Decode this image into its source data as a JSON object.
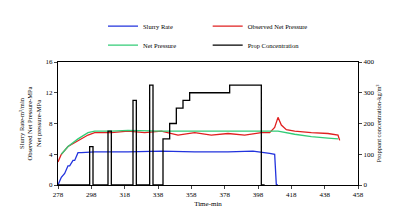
{
  "chart_data": {
    "type": "line",
    "xlabel": "Time-min",
    "ylabel": [
      "Slurry Rate-m³/min",
      "Observed Net Pressure-MPa",
      "Net pressure-MPa"
    ],
    "y2label": "Proppant concentration-kg/m³",
    "xlim": [
      278,
      458
    ],
    "xticks": [
      278,
      298,
      318,
      338,
      358,
      378,
      398,
      418,
      438,
      458
    ],
    "ylim": [
      0,
      16
    ],
    "yticks": [
      0,
      4,
      8,
      12,
      16
    ],
    "y2lim": [
      0,
      400
    ],
    "y2ticks": [
      0,
      100,
      200,
      300,
      400
    ],
    "legend": "top",
    "grid": false,
    "series": [
      {
        "name": "Slurry Rate",
        "color": "#2233dd",
        "axis": "y",
        "x": [
          278,
          280,
          282,
          284,
          285,
          287,
          288,
          290,
          292,
          300,
          320,
          340,
          360,
          380,
          395,
          400,
          405,
          408,
          409,
          410
        ],
        "values": [
          0,
          1,
          1.5,
          2.5,
          2.5,
          3.2,
          3.2,
          4.2,
          4.2,
          4.3,
          4.3,
          4.4,
          4.3,
          4.3,
          4.4,
          4.2,
          4.1,
          4.0,
          0,
          0
        ]
      },
      {
        "name": "Observed Net Pressure",
        "color": "#e02020",
        "axis": "y",
        "x": [
          278,
          280,
          284,
          288,
          292,
          296,
          300,
          310,
          320,
          330,
          340,
          350,
          360,
          370,
          380,
          390,
          400,
          405,
          408,
          410,
          412,
          415,
          420,
          430,
          440,
          446,
          447
        ],
        "values": [
          3,
          4,
          5,
          5.5,
          6,
          6.5,
          6.8,
          6.8,
          7,
          6.8,
          7,
          6.5,
          6.8,
          6.5,
          6.7,
          6.5,
          6.8,
          6.8,
          7.5,
          8.8,
          7.8,
          7.2,
          7,
          6.8,
          6.7,
          6.5,
          5.8
        ]
      },
      {
        "name": "Net Pressure",
        "color": "#33cc77",
        "axis": "y",
        "x": [
          280,
          284,
          290,
          296,
          300,
          310,
          320,
          340,
          360,
          380,
          400,
          410,
          420,
          430,
          440,
          446
        ],
        "values": [
          4,
          5,
          6,
          6.8,
          7,
          7,
          7.1,
          7,
          7,
          7,
          7,
          7,
          6.6,
          6.3,
          6.1,
          6
        ]
      },
      {
        "name": "Prop Concentration",
        "color": "#000000",
        "axis": "y2",
        "x": [
          278,
          297,
          297,
          299,
          299,
          308,
          308,
          310,
          310,
          323,
          323,
          325,
          325,
          333,
          333,
          335,
          335,
          341,
          341,
          345,
          345,
          349,
          349,
          353,
          353,
          357,
          357,
          381,
          381,
          400,
          400,
          402
        ],
        "values": [
          0,
          0,
          125,
          125,
          0,
          0,
          175,
          175,
          0,
          0,
          275,
          275,
          0,
          0,
          325,
          325,
          0,
          0,
          150,
          150,
          200,
          200,
          250,
          250,
          275,
          275,
          300,
          300,
          325,
          325,
          0,
          0
        ]
      }
    ]
  }
}
